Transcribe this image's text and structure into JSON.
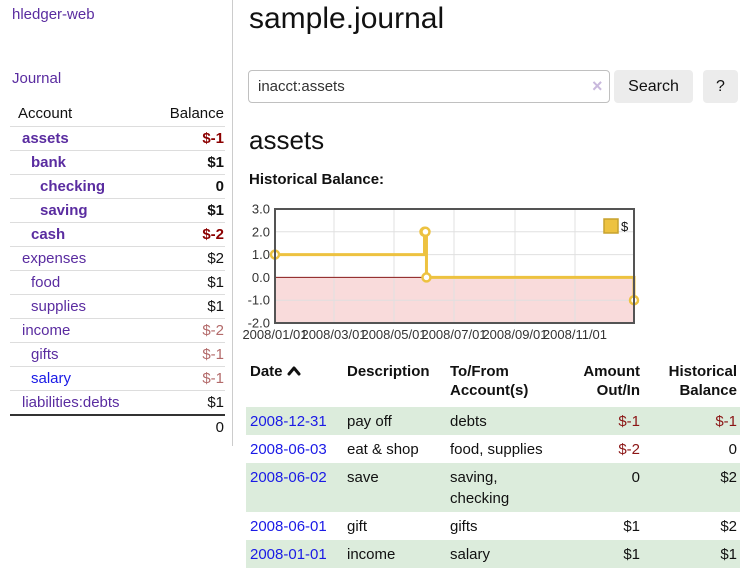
{
  "sidebar": {
    "app_title": "hledger-web",
    "nav": {
      "journal_label": "Journal"
    },
    "accounts_table": {
      "headers": {
        "account": "Account",
        "balance": "Balance"
      },
      "rows": [
        {
          "name": "assets",
          "level": 1,
          "bold": true,
          "balance": "$-1",
          "balance_tone": "neg-strong",
          "link_tone": "purple"
        },
        {
          "name": "bank",
          "level": 2,
          "bold": true,
          "balance": "$1",
          "balance_tone": "normal",
          "link_tone": "purple"
        },
        {
          "name": "checking",
          "level": 3,
          "bold": true,
          "balance": "0",
          "balance_tone": "normal",
          "link_tone": "purple"
        },
        {
          "name": "saving",
          "level": 3,
          "bold": true,
          "balance": "$1",
          "balance_tone": "normal",
          "link_tone": "purple"
        },
        {
          "name": "cash",
          "level": 2,
          "bold": true,
          "balance": "$-2",
          "balance_tone": "neg-strong",
          "link_tone": "purple"
        },
        {
          "name": "expenses",
          "level": 1,
          "bold": false,
          "balance": "$2",
          "balance_tone": "normal",
          "link_tone": "purple"
        },
        {
          "name": "food",
          "level": 2,
          "bold": false,
          "balance": "$1",
          "balance_tone": "normal",
          "link_tone": "purple"
        },
        {
          "name": "supplies",
          "level": 2,
          "bold": false,
          "balance": "$1",
          "balance_tone": "normal",
          "link_tone": "purple"
        },
        {
          "name": "income",
          "level": 1,
          "bold": false,
          "balance": "$-2",
          "balance_tone": "neg-soft",
          "link_tone": "purple"
        },
        {
          "name": "gifts",
          "level": 2,
          "bold": false,
          "balance": "$-1",
          "balance_tone": "neg-soft",
          "link_tone": "purple"
        },
        {
          "name": "salary",
          "level": 2,
          "bold": false,
          "balance": "$-1",
          "balance_tone": "neg-soft",
          "link_tone": "blue"
        },
        {
          "name": "liabilities:debts",
          "level": 1,
          "bold": false,
          "balance": "$1",
          "balance_tone": "normal",
          "link_tone": "purple"
        }
      ],
      "total": "0"
    }
  },
  "header": {
    "title": "sample.journal"
  },
  "search": {
    "query": "inacct:assets",
    "clear_icon": "×",
    "search_label": "Search",
    "help_label": "?"
  },
  "account_page": {
    "title": "assets",
    "chart_label": "Historical Balance:"
  },
  "chart_data": {
    "type": "line",
    "subtype": "step",
    "title": "Historical Balance",
    "series": [
      {
        "name": "$",
        "points": [
          {
            "date": "2008-01-01",
            "value": 1
          },
          {
            "date": "2008-06-01",
            "value": 2
          },
          {
            "date": "2008-06-02",
            "value": 2
          },
          {
            "date": "2008-06-03",
            "value": 0
          },
          {
            "date": "2008-12-31",
            "value": -1
          }
        ]
      }
    ],
    "ylim": [
      -2,
      3
    ],
    "yticks": [
      3.0,
      2.0,
      1.0,
      0.0,
      -1.0,
      -2.0
    ],
    "xticks": [
      {
        "label": "2008/01/01",
        "date": "2008-01-01"
      },
      {
        "label": "2008/03/01",
        "date": "2008-03-01"
      },
      {
        "label": "2008/05/01",
        "date": "2008-05-01"
      },
      {
        "label": "2008/07/01",
        "date": "2008-07-01"
      },
      {
        "label": "2008/09/01",
        "date": "2008-09-01"
      },
      {
        "label": "2008/11/01",
        "date": "2008-11-01"
      }
    ],
    "x_range": [
      "2008-01-01",
      "2008-12-31"
    ],
    "grid": true,
    "legend_position": "top-right",
    "legend_label": "$",
    "colors": {
      "line": "#edc240",
      "marker_fill": "#ffffff",
      "negative_fill": "#f9dbdb",
      "zero_line": "#8b1a1a",
      "plot_border": "#545454",
      "gridline": "#e0e0e0",
      "tick_text": "#333333",
      "legend_swatch": "#edc240",
      "legend_swatch_border": "#c7a22e"
    }
  },
  "register_table": {
    "headers": {
      "date": "Date",
      "sort_icon": "chevron-up",
      "description": "Description",
      "accounts": [
        "To/From",
        "Account(s)"
      ],
      "amount": [
        "Amount",
        "Out/In"
      ],
      "balance": [
        "Historical",
        "Balance"
      ]
    },
    "rows": [
      {
        "date": "2008-12-31",
        "description": "pay off",
        "accounts": "debts",
        "amount": "$-1",
        "amount_neg": true,
        "balance": "$-1",
        "balance_neg": true,
        "striped": true
      },
      {
        "date": "2008-06-03",
        "description": "eat & shop",
        "accounts": "food, supplies",
        "amount": "$-2",
        "amount_neg": true,
        "balance": "0",
        "balance_neg": false,
        "striped": false
      },
      {
        "date": "2008-06-02",
        "description": "save",
        "accounts": "saving, checking",
        "amount": "0",
        "amount_neg": false,
        "balance": "$2",
        "balance_neg": false,
        "striped": true
      },
      {
        "date": "2008-06-01",
        "description": "gift",
        "accounts": "gifts",
        "amount": "$1",
        "amount_neg": false,
        "balance": "$2",
        "balance_neg": false,
        "striped": false
      },
      {
        "date": "2008-01-01",
        "description": "income",
        "accounts": "salary",
        "amount": "$1",
        "amount_neg": false,
        "balance": "$1",
        "balance_neg": false,
        "striped": true
      }
    ]
  },
  "colors": {
    "accent_purple": "#5a2ca0",
    "link_blue": "#1a1ae6",
    "negative_strong": "#8b0000",
    "negative_soft": "#b36a6a",
    "row_green": "#dcecdc",
    "button_bg": "#ececec"
  }
}
